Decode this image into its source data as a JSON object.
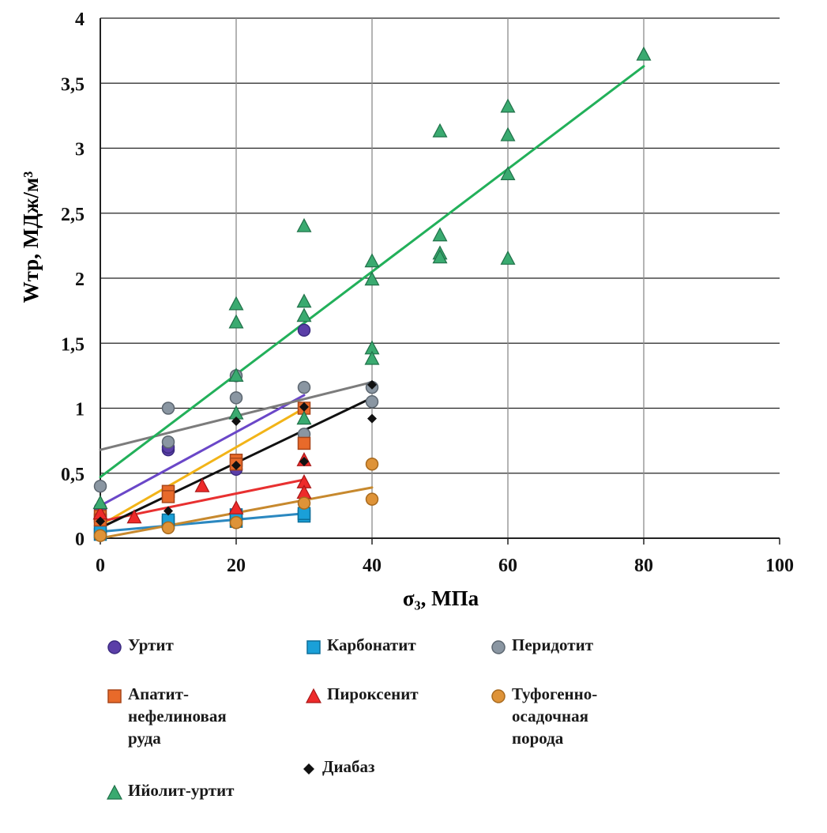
{
  "chart_data": {
    "type": "scatter",
    "xlabel": "σ₃, МПа",
    "ylabel": "Wтр,  МДж/м³",
    "xlim": [
      0,
      100
    ],
    "ylim": [
      0,
      4
    ],
    "x_ticks": [
      "0",
      "20",
      "40",
      "60",
      "80",
      "100"
    ],
    "y_ticks": [
      "0",
      "0,5",
      "1",
      "1,5",
      "2",
      "2,5",
      "3",
      "3,5",
      "4"
    ],
    "grid": true,
    "legend_position": "bottom",
    "series": [
      {
        "name": "Уртит",
        "marker": "circle",
        "color": "#5b3fa8",
        "points": [
          [
            0,
            0.23
          ],
          [
            10,
            0.68
          ],
          [
            10,
            0.7
          ],
          [
            20,
            0.53
          ],
          [
            30,
            1.6
          ]
        ],
        "trend": [
          [
            0,
            0.25
          ],
          [
            30,
            1.1
          ]
        ]
      },
      {
        "name": "Карбонатит",
        "marker": "square",
        "color": "#1aa0d8",
        "points": [
          [
            0,
            0.03
          ],
          [
            0,
            0.05
          ],
          [
            10,
            0.12
          ],
          [
            10,
            0.14
          ],
          [
            20,
            0.13
          ],
          [
            20,
            0.18
          ],
          [
            30,
            0.17
          ],
          [
            30,
            0.19
          ]
        ],
        "trend": [
          [
            0,
            0.05
          ],
          [
            30,
            0.19
          ]
        ]
      },
      {
        "name": "Перидотит",
        "marker": "circle",
        "color": "#8a96a2",
        "points": [
          [
            0,
            0.4
          ],
          [
            10,
            1.0
          ],
          [
            10,
            0.74
          ],
          [
            20,
            1.25
          ],
          [
            20,
            1.08
          ],
          [
            30,
            1.16
          ],
          [
            30,
            0.8
          ],
          [
            40,
            1.16
          ],
          [
            40,
            1.05
          ]
        ],
        "trend": [
          [
            0,
            0.68
          ],
          [
            40,
            1.2
          ]
        ]
      },
      {
        "name": "Апатит-\nнефелиновая\nруда",
        "marker": "square",
        "color": "#e86a2a",
        "points": [
          [
            0,
            0.17
          ],
          [
            0,
            0.14
          ],
          [
            10,
            0.36
          ],
          [
            10,
            0.32
          ],
          [
            20,
            0.6
          ],
          [
            20,
            0.57
          ],
          [
            30,
            1.0
          ],
          [
            30,
            0.73
          ]
        ],
        "trend": [
          [
            0,
            0.1
          ],
          [
            30,
            1.0
          ]
        ]
      },
      {
        "name": "Пироксенит",
        "marker": "triangle",
        "color": "#ee2a2a",
        "points": [
          [
            0,
            0.19
          ],
          [
            5,
            0.16
          ],
          [
            15,
            0.4
          ],
          [
            20,
            0.23
          ],
          [
            30,
            0.43
          ],
          [
            30,
            0.35
          ],
          [
            30,
            0.6
          ]
        ],
        "trend": [
          [
            0,
            0.13
          ],
          [
            30,
            0.45
          ]
        ]
      },
      {
        "name": "Туфогенно-\nосадочная\nпорода",
        "marker": "circle",
        "color": "#de9338",
        "points": [
          [
            0,
            0.02
          ],
          [
            10,
            0.08
          ],
          [
            20,
            0.12
          ],
          [
            30,
            0.27
          ],
          [
            40,
            0.57
          ],
          [
            40,
            0.3
          ]
        ],
        "trend": [
          [
            0,
            0.0
          ],
          [
            40,
            0.39
          ]
        ]
      },
      {
        "name": "Диабаз",
        "marker": "diamond",
        "color": "#111111",
        "points": [
          [
            0,
            0.13
          ],
          [
            10,
            0.21
          ],
          [
            20,
            0.9
          ],
          [
            20,
            0.56
          ],
          [
            30,
            1.01
          ],
          [
            30,
            0.59
          ],
          [
            40,
            1.18
          ],
          [
            40,
            0.92
          ]
        ],
        "trend": [
          [
            0,
            0.08
          ],
          [
            40,
            1.08
          ]
        ]
      },
      {
        "name": "Ийолит-уртит",
        "marker": "triangle",
        "color": "#3aaa70",
        "points": [
          [
            0,
            0.27
          ],
          [
            20,
            1.8
          ],
          [
            20,
            1.66
          ],
          [
            20,
            1.25
          ],
          [
            20,
            0.96
          ],
          [
            30,
            2.4
          ],
          [
            30,
            1.82
          ],
          [
            30,
            1.71
          ],
          [
            30,
            0.92
          ],
          [
            40,
            2.13
          ],
          [
            40,
            1.99
          ],
          [
            40,
            1.46
          ],
          [
            40,
            1.38
          ],
          [
            50,
            3.13
          ],
          [
            50,
            2.33
          ],
          [
            50,
            2.19
          ],
          [
            50,
            2.16
          ],
          [
            60,
            3.32
          ],
          [
            60,
            3.1
          ],
          [
            60,
            2.8
          ],
          [
            60,
            2.15
          ],
          [
            80,
            3.72
          ]
        ],
        "trend": [
          [
            0,
            0.47
          ],
          [
            80,
            3.63
          ]
        ]
      }
    ]
  },
  "colors": {
    "urtit": "#5b3fa8",
    "urtit_line": "#6a47c8",
    "karbonatit": "#1aa0d8",
    "karbonatit_line": "#2b88c0",
    "peridotit": "#8a96a2",
    "peridotit_line": "#7c7c7c",
    "apatit": "#e86a2a",
    "apatit_line": "#f2b418",
    "piroksenit": "#ee2a2a",
    "piroksenit_line": "#e83030",
    "tufogen": "#de9338",
    "tufogen_line": "#c7892e",
    "diabaz": "#111111",
    "diabaz_line": "#111111",
    "iyolit": "#3aaa70",
    "iyolit_line": "#22b05a"
  }
}
